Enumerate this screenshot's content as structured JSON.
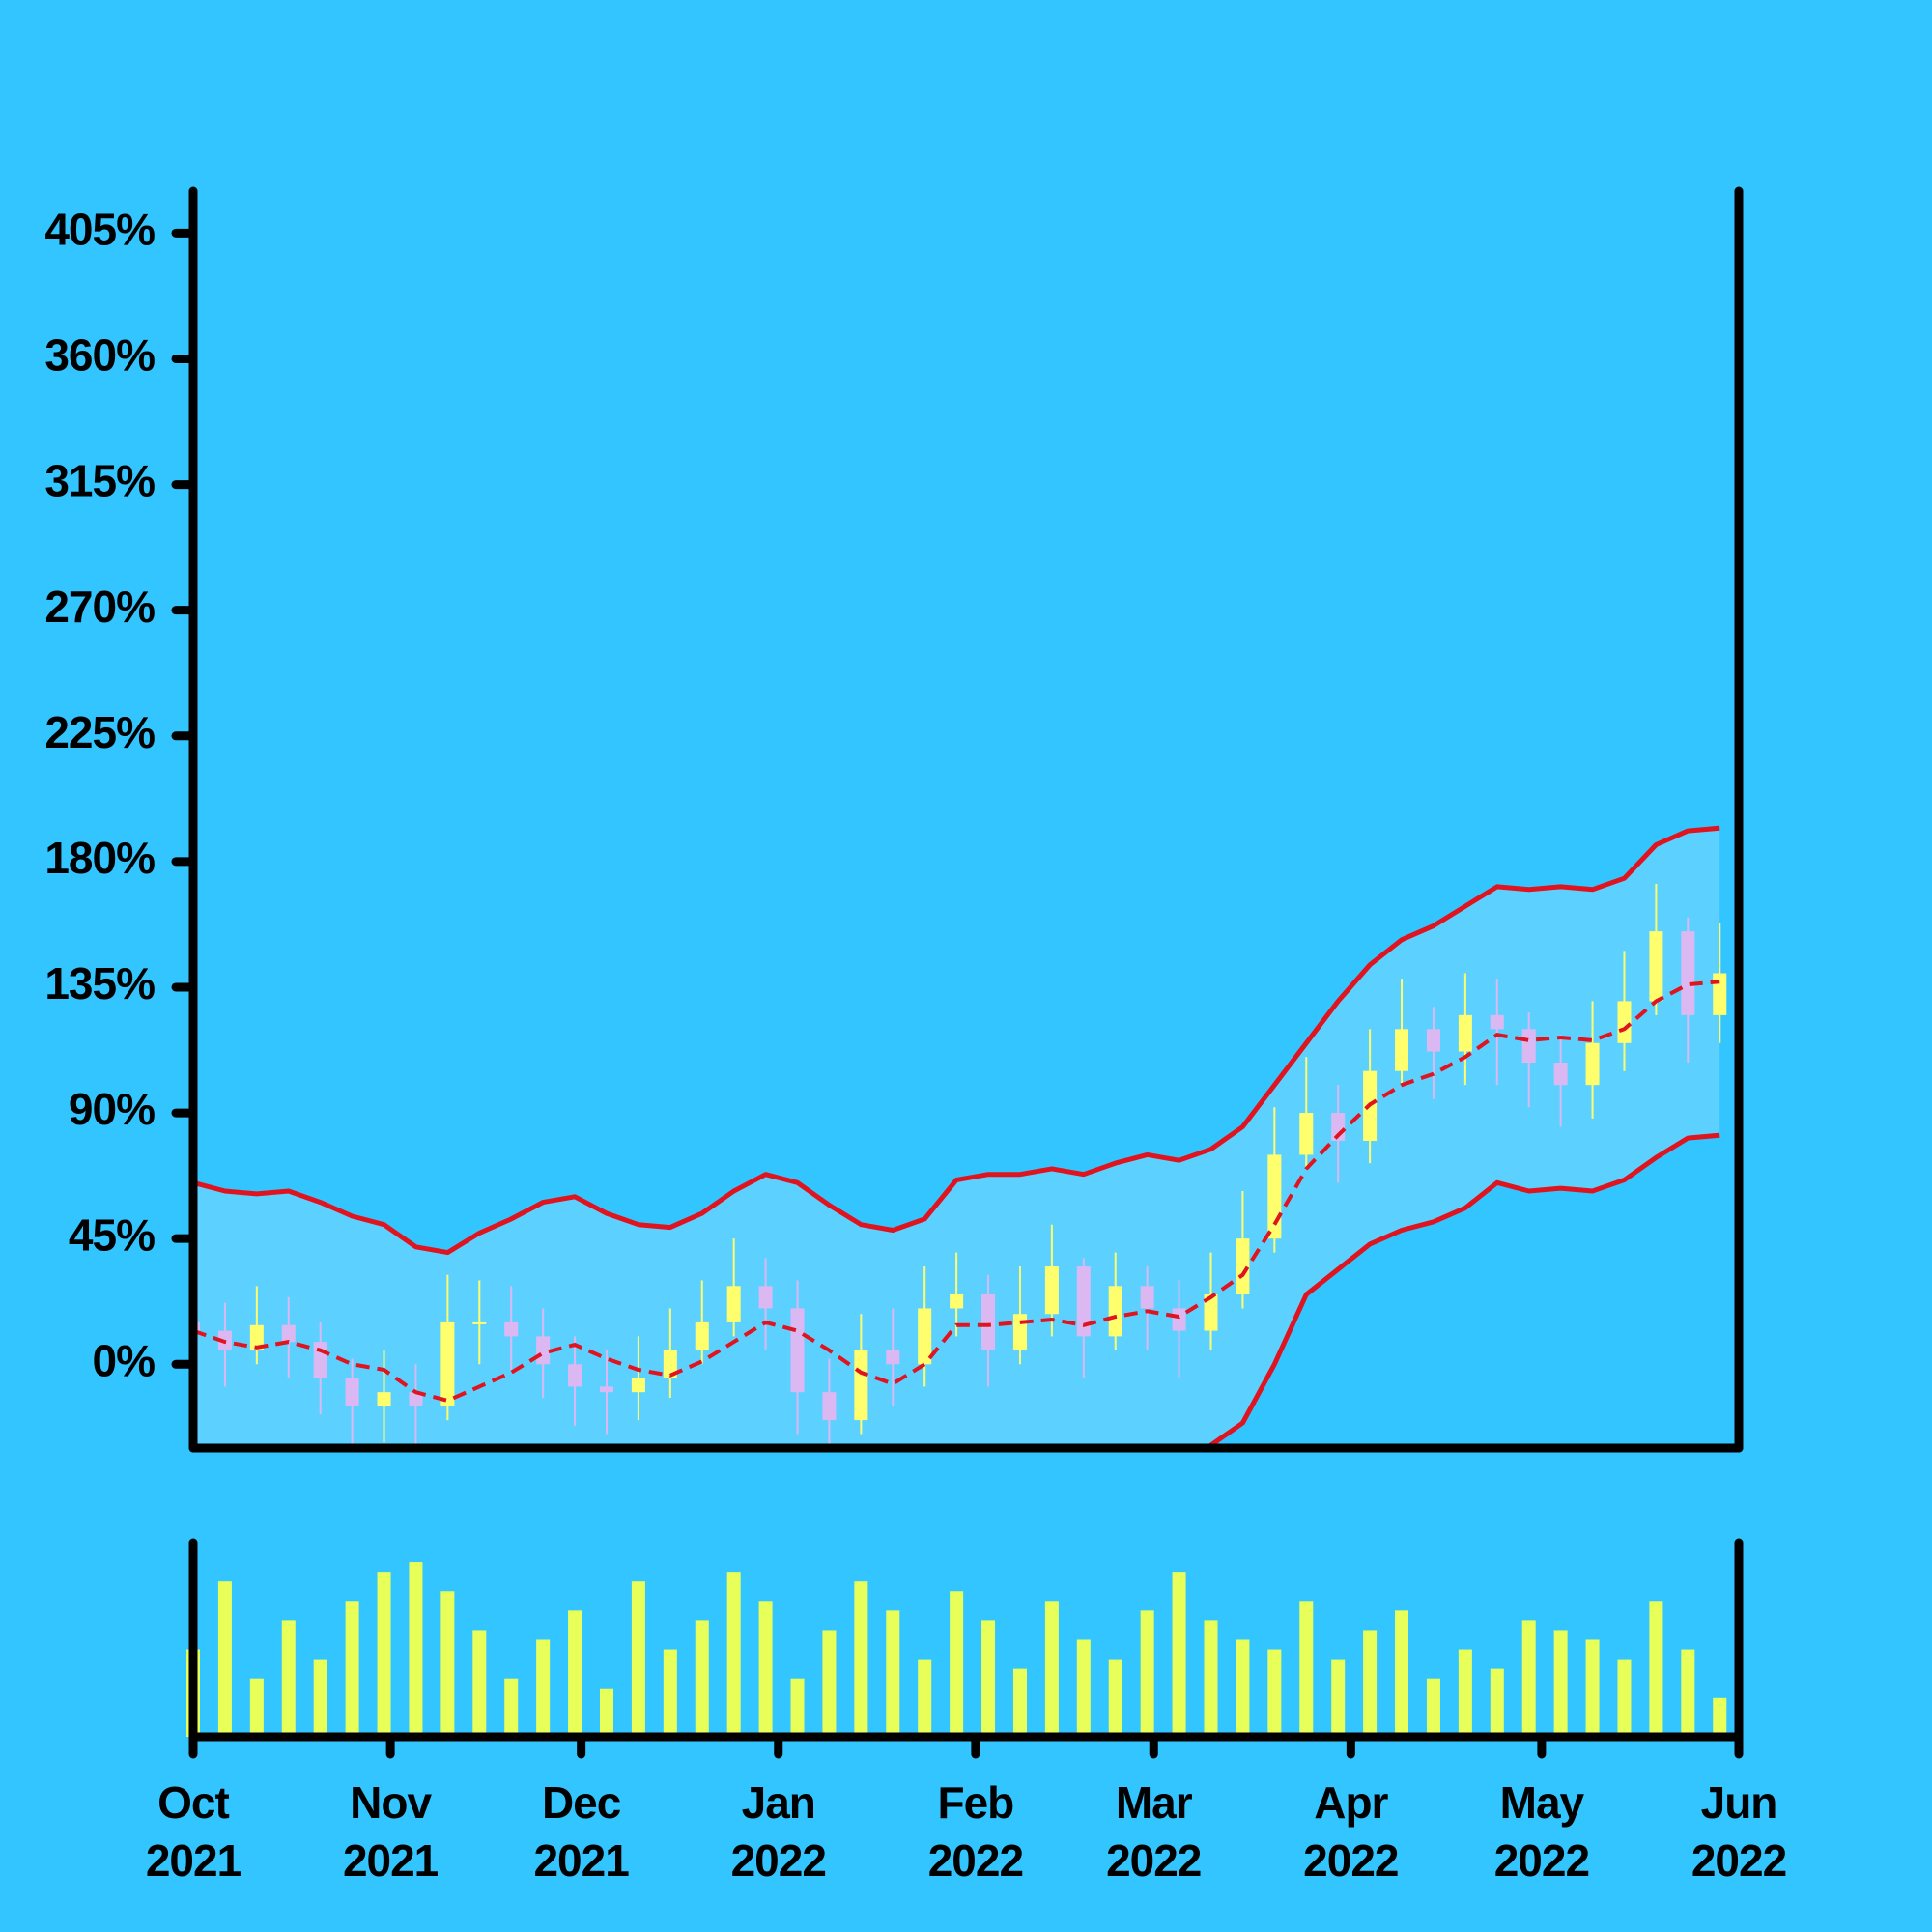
{
  "chart_data": {
    "type": "candlestick",
    "xlim": [
      0,
      48.6
    ],
    "xticks": [
      {
        "value": 0,
        "label": "Oct 2021"
      },
      {
        "value": 6.2,
        "label": "Nov 2021"
      },
      {
        "value": 12.2,
        "label": "Dec 2021"
      },
      {
        "value": 18.4,
        "label": "Jan 2022"
      },
      {
        "value": 24.6,
        "label": "Feb 2022"
      },
      {
        "value": 30.2,
        "label": "Mar 2022"
      },
      {
        "value": 36.4,
        "label": "Apr 2022"
      },
      {
        "value": 42.4,
        "label": "May 2022"
      },
      {
        "value": 48.6,
        "label": "Jun 2022"
      }
    ],
    "ylim": [
      -30,
      420
    ],
    "yticks": [
      {
        "value": 0,
        "label": "0%"
      },
      {
        "value": 45,
        "label": "45%"
      },
      {
        "value": 90,
        "label": "90%"
      },
      {
        "value": 135,
        "label": "135%"
      },
      {
        "value": 180,
        "label": "180%"
      },
      {
        "value": 225,
        "label": "225%"
      },
      {
        "value": 270,
        "label": "270%"
      },
      {
        "value": 315,
        "label": "315%"
      },
      {
        "value": 360,
        "label": "360%"
      },
      {
        "value": 405,
        "label": "405%"
      }
    ],
    "open": [
      15,
      12,
      5,
      14,
      8,
      -5,
      -15,
      -10,
      -15,
      15,
      15,
      10,
      0,
      -8,
      -10,
      -5,
      5,
      15,
      28,
      20,
      -10,
      -20,
      5,
      0,
      20,
      25,
      5,
      18,
      35,
      10,
      28,
      20,
      12,
      25,
      45,
      75,
      90,
      80,
      105,
      120,
      112,
      125,
      120,
      108,
      100,
      115,
      130,
      155,
      125
    ],
    "high": [
      30,
      22,
      28,
      24,
      15,
      2,
      5,
      0,
      32,
      30,
      28,
      20,
      10,
      5,
      10,
      20,
      30,
      45,
      38,
      30,
      2,
      18,
      20,
      35,
      40,
      32,
      35,
      50,
      38,
      40,
      35,
      30,
      40,
      62,
      92,
      110,
      100,
      120,
      138,
      128,
      140,
      138,
      126,
      118,
      130,
      148,
      172,
      160,
      158
    ],
    "low": [
      -5,
      -8,
      0,
      -5,
      -18,
      -30,
      -28,
      -30,
      -20,
      0,
      -2,
      -12,
      -22,
      -25,
      -20,
      -12,
      0,
      10,
      5,
      -25,
      -35,
      -25,
      -15,
      -8,
      10,
      -8,
      0,
      10,
      -5,
      5,
      5,
      -5,
      5,
      20,
      40,
      70,
      65,
      72,
      100,
      95,
      100,
      100,
      92,
      85,
      88,
      105,
      125,
      108,
      115
    ],
    "close": [
      12,
      5,
      14,
      8,
      -5,
      -15,
      -10,
      -15,
      15,
      15,
      10,
      0,
      -8,
      -10,
      -5,
      5,
      15,
      28,
      20,
      -10,
      -20,
      5,
      0,
      20,
      25,
      5,
      18,
      35,
      10,
      28,
      20,
      12,
      25,
      45,
      75,
      90,
      80,
      105,
      120,
      112,
      125,
      120,
      108,
      100,
      115,
      130,
      155,
      125,
      140
    ],
    "up_color": "#ffff6e",
    "down_color": "#dcb8f2",
    "bands": {
      "color": "#e0141e",
      "fill": "#5cd1ff",
      "upper": [
        65,
        62,
        61,
        62,
        58,
        53,
        50,
        42,
        40,
        47,
        52,
        58,
        60,
        54,
        50,
        49,
        54,
        62,
        68,
        65,
        57,
        50,
        48,
        52,
        66,
        68,
        68,
        70,
        68,
        72,
        75,
        73,
        77,
        85,
        100,
        115,
        130,
        143,
        152,
        157,
        164,
        171,
        170,
        171,
        170,
        174,
        186,
        191,
        192
      ],
      "middle": [
        12,
        8,
        6,
        8,
        5,
        0,
        -2,
        -10,
        -13,
        -8,
        -3,
        4,
        7,
        2,
        -2,
        -4,
        1,
        8,
        15,
        12,
        5,
        -3,
        -7,
        0,
        14,
        14,
        15,
        16,
        14,
        17,
        19,
        17,
        24,
        32,
        50,
        70,
        82,
        93,
        100,
        104,
        110,
        118,
        116,
        117,
        116,
        120,
        130,
        136,
        137
      ],
      "lower": [
        -41,
        -46,
        -49,
        -46,
        -48,
        -53,
        -54,
        -62,
        -66,
        -63,
        -58,
        -50,
        -46,
        -50,
        -54,
        -57,
        -52,
        -46,
        -38,
        -41,
        -47,
        -56,
        -62,
        -52,
        -38,
        -40,
        -38,
        -38,
        -40,
        -38,
        -37,
        -39,
        -29,
        -21,
        0,
        25,
        34,
        43,
        48,
        51,
        56,
        65,
        62,
        63,
        62,
        66,
        74,
        81,
        82
      ]
    },
    "volume": {
      "color": "#e8ff5a",
      "ylim": [
        0,
        100
      ],
      "values": [
        45,
        80,
        30,
        60,
        40,
        70,
        85,
        90,
        75,
        55,
        30,
        50,
        65,
        25,
        80,
        45,
        60,
        85,
        70,
        30,
        55,
        80,
        65,
        40,
        75,
        60,
        35,
        70,
        50,
        40,
        65,
        85,
        60,
        50,
        45,
        70,
        40,
        55,
        65,
        30,
        45,
        35,
        60,
        55,
        50,
        40,
        70,
        45,
        20
      ]
    }
  }
}
